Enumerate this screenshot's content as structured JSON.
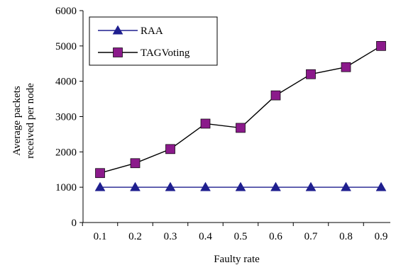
{
  "chart_data": {
    "type": "line",
    "title": "",
    "xlabel": "Faulty rate",
    "ylabel_lines": [
      "Average  packets",
      "received per node"
    ],
    "categories": [
      "0.1",
      "0.2",
      "0.3",
      "0.4",
      "0.5",
      "0.6",
      "0.7",
      "0.8",
      "0.9"
    ],
    "yticks": [
      "0",
      "1000",
      "2000",
      "3000",
      "4000",
      "5000",
      "6000"
    ],
    "ylim": [
      0,
      6000
    ],
    "grid": false,
    "legend_position": "top-left",
    "series": [
      {
        "name": "RAA",
        "marker": "triangle",
        "color": "#1f1f8f",
        "values": [
          1000,
          1000,
          1000,
          1000,
          1000,
          1000,
          1000,
          1000,
          1000
        ]
      },
      {
        "name": "TAGVoting",
        "marker": "square",
        "color": "#8b1a8b",
        "values": [
          1400,
          1680,
          2080,
          2800,
          2680,
          3600,
          4200,
          4400,
          5000
        ]
      }
    ]
  }
}
